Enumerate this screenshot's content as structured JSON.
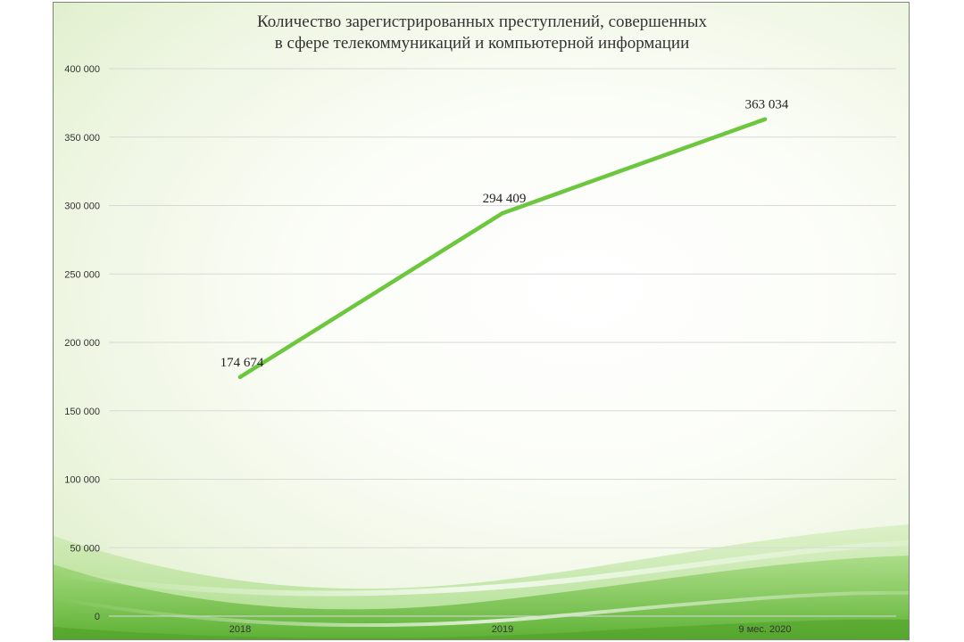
{
  "chart_data": {
    "type": "line",
    "title_lines": [
      "Количество зарегистрированных преступлений, совершенных",
      "в сфере телекоммуникаций и компьютерной информации"
    ],
    "categories": [
      "2018",
      "2019",
      "9 мес. 2020"
    ],
    "series": [
      {
        "values": [
          174674,
          294409,
          363034
        ],
        "data_labels": [
          "174 674",
          "294 409",
          "363 034"
        ],
        "color": "#6cc63e"
      }
    ],
    "ylim": [
      0,
      400000
    ],
    "y_ticks": [
      0,
      50000,
      100000,
      150000,
      200000,
      250000,
      300000,
      350000,
      400000
    ],
    "y_tick_labels": [
      "0",
      "50 000",
      "100 000",
      "150 000",
      "200 000",
      "250 000",
      "300 000",
      "350 000",
      "400 000"
    ],
    "xlabel": "",
    "ylabel": "",
    "grid": true,
    "legend": "none",
    "colors": {
      "line": "#6cc63e",
      "grid": "#d9d9d9",
      "wave": "#5fb832"
    }
  }
}
